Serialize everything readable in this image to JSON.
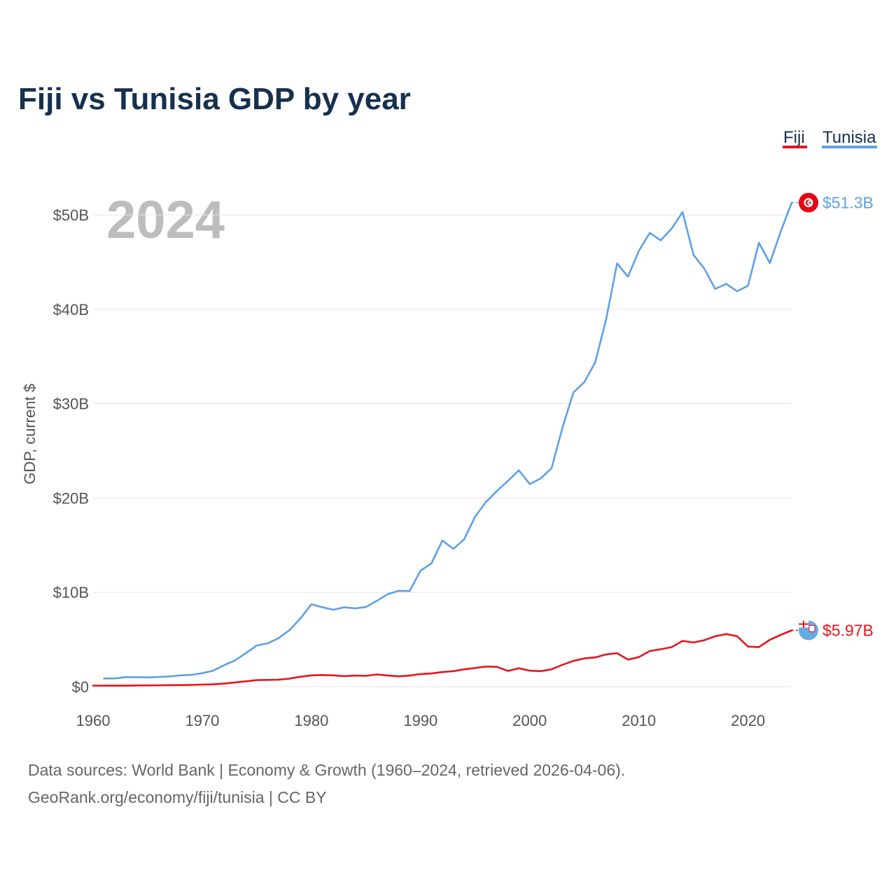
{
  "chart_data": {
    "type": "line",
    "title": "Fiji vs Tunisia GDP by year",
    "current_year": "2024",
    "ylabel": "GDP, current $",
    "xlabel": "",
    "xlim": [
      1960,
      2024
    ],
    "ylim": [
      0,
      50
    ],
    "y_unit": "billions of current US$",
    "y_ticks": [
      0,
      10,
      20,
      30,
      40,
      50
    ],
    "y_tick_labels": [
      "$0",
      "$10B",
      "$20B",
      "$30B",
      "$40B",
      "$50B"
    ],
    "x_ticks": [
      1960,
      1970,
      1980,
      1990,
      2000,
      2010,
      2020
    ],
    "x_tick_labels": [
      "1960",
      "1970",
      "1980",
      "1990",
      "2000",
      "2010",
      "2020"
    ],
    "grid": true,
    "legend_position": "top-right",
    "legend": [
      "Fiji",
      "Tunisia"
    ],
    "series": [
      {
        "name": "Fiji",
        "color": "#e8141f",
        "end_label": "$5.97B",
        "x": [
          1960,
          1961,
          1962,
          1963,
          1964,
          1965,
          1966,
          1967,
          1968,
          1969,
          1970,
          1971,
          1972,
          1973,
          1974,
          1975,
          1976,
          1977,
          1978,
          1979,
          1980,
          1981,
          1982,
          1983,
          1984,
          1985,
          1986,
          1987,
          1988,
          1989,
          1990,
          1991,
          1992,
          1993,
          1994,
          1995,
          1996,
          1997,
          1998,
          1999,
          2000,
          2001,
          2002,
          2003,
          2004,
          2005,
          2006,
          2007,
          2008,
          2009,
          2010,
          2011,
          2012,
          2013,
          2014,
          2015,
          2016,
          2017,
          2018,
          2019,
          2020,
          2021,
          2022,
          2023,
          2024
        ],
        "values": [
          0.11,
          0.12,
          0.12,
          0.12,
          0.13,
          0.14,
          0.15,
          0.16,
          0.17,
          0.19,
          0.22,
          0.25,
          0.33,
          0.45,
          0.57,
          0.7,
          0.72,
          0.74,
          0.86,
          1.05,
          1.2,
          1.24,
          1.2,
          1.12,
          1.18,
          1.15,
          1.3,
          1.18,
          1.1,
          1.18,
          1.34,
          1.4,
          1.55,
          1.65,
          1.84,
          1.98,
          2.14,
          2.1,
          1.67,
          1.95,
          1.7,
          1.65,
          1.84,
          2.32,
          2.73,
          3.0,
          3.1,
          3.42,
          3.55,
          2.87,
          3.14,
          3.78,
          3.97,
          4.19,
          4.86,
          4.68,
          4.93,
          5.35,
          5.58,
          5.35,
          4.25,
          4.2,
          4.98,
          5.49,
          5.97
        ]
      },
      {
        "name": "Tunisia",
        "color": "#5ea1e5",
        "end_label": "$51.3B",
        "x": [
          1961,
          1962,
          1963,
          1964,
          1965,
          1966,
          1967,
          1968,
          1969,
          1970,
          1971,
          1972,
          1973,
          1974,
          1975,
          1976,
          1977,
          1978,
          1979,
          1980,
          1981,
          1982,
          1983,
          1984,
          1985,
          1986,
          1987,
          1988,
          1989,
          1990,
          1991,
          1992,
          1993,
          1994,
          1995,
          1996,
          1997,
          1998,
          1999,
          2000,
          2001,
          2002,
          2003,
          2004,
          2005,
          2006,
          2007,
          2008,
          2009,
          2010,
          2011,
          2012,
          2013,
          2014,
          2015,
          2016,
          2017,
          2018,
          2019,
          2020,
          2021,
          2022,
          2023,
          2024
        ],
        "values": [
          0.87,
          0.88,
          1.02,
          1.01,
          0.99,
          1.03,
          1.09,
          1.2,
          1.25,
          1.43,
          1.7,
          2.28,
          2.79,
          3.56,
          4.37,
          4.59,
          5.15,
          6.0,
          7.25,
          8.74,
          8.42,
          8.16,
          8.41,
          8.3,
          8.45,
          9.1,
          9.81,
          10.16,
          10.14,
          12.29,
          13.08,
          15.5,
          14.61,
          15.63,
          18.03,
          19.59,
          20.75,
          21.8,
          22.94,
          21.47,
          22.07,
          23.14,
          27.45,
          31.18,
          32.27,
          34.38,
          38.93,
          44.86,
          43.45,
          46.2,
          48.09,
          47.3,
          48.55,
          50.3,
          45.78,
          44.28,
          42.15,
          42.69,
          41.91,
          42.49,
          47.05,
          44.89,
          48.25,
          51.3
        ]
      }
    ]
  },
  "footer": {
    "line1": "Data sources: World Bank | Economy & Growth (1960–2024, retrieved 2026-04-06).",
    "line2": "GeoRank.org/economy/fiji/tunisia | CC BY"
  }
}
